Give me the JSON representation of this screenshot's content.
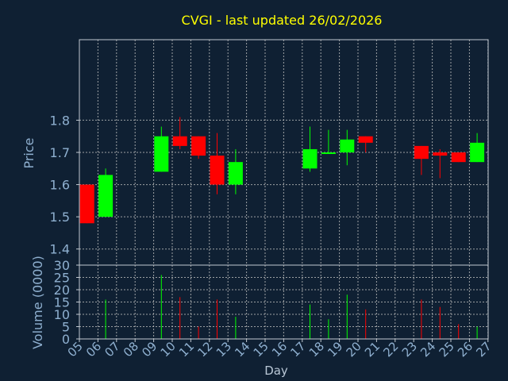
{
  "chart_data": {
    "type": "candlestick",
    "title": "CVGI - last updated 26/02/2026",
    "xlabel": "Day",
    "price_panel": {
      "ylabel": "Price",
      "ylim": [
        1.35,
        2.05
      ],
      "yticks": [
        1.4,
        1.5,
        1.6,
        1.7,
        1.8
      ]
    },
    "volume_panel": {
      "ylabel": "Volume (0000)",
      "ylim": [
        0,
        30
      ],
      "yticks": [
        0,
        5,
        10,
        15,
        20,
        25,
        30
      ]
    },
    "x_ticks": [
      "05",
      "06",
      "07",
      "08",
      "09",
      "10",
      "11",
      "12",
      "13",
      "14",
      "15",
      "16",
      "17",
      "18",
      "19",
      "20",
      "21",
      "22",
      "23",
      "24",
      "25",
      "26",
      "27"
    ],
    "grid": true,
    "colors": {
      "up": "#00ff00",
      "down": "#ff0000",
      "title": "#ffff00",
      "axis_text": "#8fb0d0",
      "grid": "#c0c0c0",
      "background": "#0f2033"
    },
    "candles": [
      {
        "day": "05",
        "open": 1.6,
        "high": 1.6,
        "low": 1.48,
        "close": 1.48,
        "volume": 0
      },
      {
        "day": "06",
        "open": 1.5,
        "high": 1.65,
        "low": 1.5,
        "close": 1.63,
        "volume": 16
      },
      {
        "day": "09",
        "open": 1.64,
        "high": 1.78,
        "low": 1.64,
        "close": 1.75,
        "volume": 26
      },
      {
        "day": "10",
        "open": 1.75,
        "high": 1.81,
        "low": 1.71,
        "close": 1.72,
        "volume": 17
      },
      {
        "day": "11",
        "open": 1.75,
        "high": 1.75,
        "low": 1.68,
        "close": 1.69,
        "volume": 5
      },
      {
        "day": "12",
        "open": 1.69,
        "high": 1.76,
        "low": 1.57,
        "close": 1.6,
        "volume": 16
      },
      {
        "day": "13",
        "open": 1.6,
        "high": 1.71,
        "low": 1.57,
        "close": 1.67,
        "volume": 9
      },
      {
        "day": "17",
        "open": 1.65,
        "high": 1.78,
        "low": 1.64,
        "close": 1.71,
        "volume": 14
      },
      {
        "day": "18",
        "open": 1.7,
        "high": 1.77,
        "low": 1.7,
        "close": 1.7,
        "volume": 8
      },
      {
        "day": "19",
        "open": 1.7,
        "high": 1.77,
        "low": 1.66,
        "close": 1.74,
        "volume": 18
      },
      {
        "day": "20",
        "open": 1.75,
        "high": 1.75,
        "low": 1.7,
        "close": 1.73,
        "volume": 12
      },
      {
        "day": "23",
        "open": 1.72,
        "high": 1.72,
        "low": 1.63,
        "close": 1.68,
        "volume": 16
      },
      {
        "day": "24",
        "open": 1.7,
        "high": 1.71,
        "low": 1.62,
        "close": 1.69,
        "volume": 13
      },
      {
        "day": "25",
        "open": 1.7,
        "high": 1.7,
        "low": 1.67,
        "close": 1.67,
        "volume": 6
      },
      {
        "day": "26",
        "open": 1.67,
        "high": 1.76,
        "low": 1.67,
        "close": 1.73,
        "volume": 5
      }
    ]
  }
}
